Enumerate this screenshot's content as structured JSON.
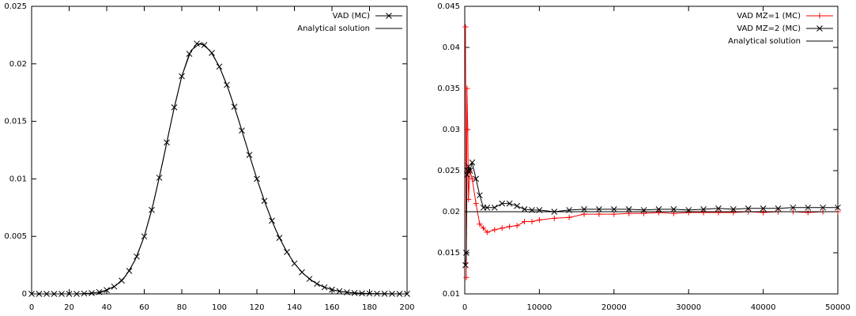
{
  "chart_data": [
    {
      "type": "line",
      "xlim": [
        0,
        200
      ],
      "xticks": [
        0,
        20,
        40,
        60,
        80,
        100,
        120,
        140,
        160,
        180,
        200
      ],
      "ylim": [
        0,
        0.025
      ],
      "yticks": [
        0,
        0.005,
        0.01,
        0.015,
        0.02,
        0.025
      ],
      "legend": "top-right",
      "series": [
        {
          "name": "VAD (MC)",
          "color": "#000000",
          "style": "linespoints",
          "marker": "x",
          "x": [
            0,
            4,
            8,
            12,
            16,
            20,
            24,
            28,
            32,
            36,
            40,
            44,
            48,
            52,
            56,
            60,
            64,
            68,
            72,
            76,
            80,
            84,
            88,
            92,
            96,
            100,
            104,
            108,
            112,
            116,
            120,
            124,
            128,
            132,
            136,
            140,
            144,
            148,
            152,
            156,
            160,
            164,
            168,
            172,
            176,
            180,
            184,
            188,
            192,
            196,
            200
          ],
          "values": [
            0,
            0,
            0,
            0,
            0,
            0,
            0,
            3e-05,
            7e-05,
            0.00016,
            0.00033,
            0.00063,
            0.00115,
            0.002,
            0.00325,
            0.005,
            0.0073,
            0.0101,
            0.01316,
            0.01622,
            0.01892,
            0.02087,
            0.02176,
            0.02164,
            0.02095,
            0.01976,
            0.01817,
            0.01627,
            0.0142,
            0.01208,
            0.01,
            0.00808,
            0.00636,
            0.00487,
            0.00364,
            0.00264,
            0.00188,
            0.0013,
            0.00087,
            0.00057,
            0.00037,
            0.00023,
            0.00014,
            8e-05,
            5e-05,
            3e-05,
            2e-05,
            1e-05,
            1e-05,
            0,
            0
          ]
        },
        {
          "name": "Analytical solution",
          "color": "#000000",
          "style": "line",
          "x": [
            0,
            5,
            10,
            15,
            20,
            25,
            30,
            35,
            40,
            45,
            50,
            55,
            60,
            65,
            70,
            75,
            80,
            85,
            90,
            95,
            100,
            105,
            110,
            115,
            120,
            125,
            130,
            135,
            140,
            145,
            150,
            155,
            160,
            165,
            170,
            175,
            180,
            185,
            190,
            195,
            200
          ],
          "values": [
            0,
            0,
            0,
            0,
            0,
            0,
            0,
            0,
            0.00033,
            0.00074,
            0.00153,
            0.00289,
            0.005,
            0.00796,
            0.0116,
            0.01547,
            0.01892,
            0.02119,
            0.0218,
            0.02117,
            0.01976,
            0.01771,
            0.01525,
            0.0126,
            0.01,
            0.00763,
            0.00558,
            0.00392,
            0.00264,
            0.00172,
            0.00107,
            0.00064,
            0.00037,
            0.0002,
            0.00011,
            6e-05,
            3e-05,
            2e-05,
            1e-05,
            0,
            0
          ]
        }
      ]
    },
    {
      "type": "line",
      "xlim": [
        0,
        50000
      ],
      "xticks": [
        0,
        10000,
        20000,
        30000,
        40000,
        50000
      ],
      "ylim": [
        0.01,
        0.045
      ],
      "yticks": [
        0.01,
        0.015,
        0.02,
        0.025,
        0.03,
        0.035,
        0.04,
        0.045
      ],
      "legend": "top-right",
      "series": [
        {
          "name": "VAD MZ=1 (MC)",
          "color": "#ff0000",
          "style": "linespoints",
          "marker": "+",
          "x": [
            100,
            200,
            300,
            400,
            500,
            700,
            1000,
            1500,
            2000,
            2500,
            3000,
            4000,
            5000,
            6000,
            7000,
            8000,
            9000,
            10000,
            12000,
            14000,
            16000,
            18000,
            20000,
            22000,
            24000,
            26000,
            28000,
            30000,
            32000,
            34000,
            36000,
            38000,
            40000,
            42000,
            44000,
            46000,
            48000,
            50000
          ],
          "values": [
            0.0425,
            0.012,
            0.035,
            0.03,
            0.0215,
            0.025,
            0.024,
            0.021,
            0.0185,
            0.018,
            0.0175,
            0.0178,
            0.018,
            0.0182,
            0.0183,
            0.0188,
            0.0188,
            0.019,
            0.0192,
            0.0193,
            0.0197,
            0.0197,
            0.0197,
            0.0198,
            0.0198,
            0.0199,
            0.0198,
            0.0199,
            0.0199,
            0.0199,
            0.0199,
            0.02,
            0.0199,
            0.02,
            0.02,
            0.0199,
            0.02,
            0.02
          ]
        },
        {
          "name": "VAD MZ=2 (MC)",
          "color": "#000000",
          "style": "linespoints",
          "marker": "x",
          "x": [
            100,
            200,
            300,
            400,
            500,
            700,
            1000,
            1500,
            2000,
            2500,
            3000,
            4000,
            5000,
            6000,
            7000,
            8000,
            9000,
            10000,
            12000,
            14000,
            16000,
            18000,
            20000,
            22000,
            24000,
            26000,
            28000,
            30000,
            32000,
            34000,
            36000,
            38000,
            40000,
            42000,
            44000,
            46000,
            48000,
            50000
          ],
          "values": [
            0.0135,
            0.015,
            0.0245,
            0.025,
            0.0255,
            0.025,
            0.026,
            0.024,
            0.022,
            0.0205,
            0.0205,
            0.0205,
            0.021,
            0.021,
            0.0207,
            0.0203,
            0.0202,
            0.0202,
            0.02,
            0.0202,
            0.0203,
            0.0203,
            0.0203,
            0.0203,
            0.0202,
            0.0203,
            0.0203,
            0.0202,
            0.0203,
            0.0204,
            0.0203,
            0.0204,
            0.0204,
            0.0204,
            0.0205,
            0.0205,
            0.0205,
            0.0205
          ]
        },
        {
          "name": "Analytical solution",
          "color": "#000000",
          "style": "line",
          "x": [
            0,
            50000
          ],
          "values": [
            0.02,
            0.02
          ]
        }
      ]
    }
  ]
}
